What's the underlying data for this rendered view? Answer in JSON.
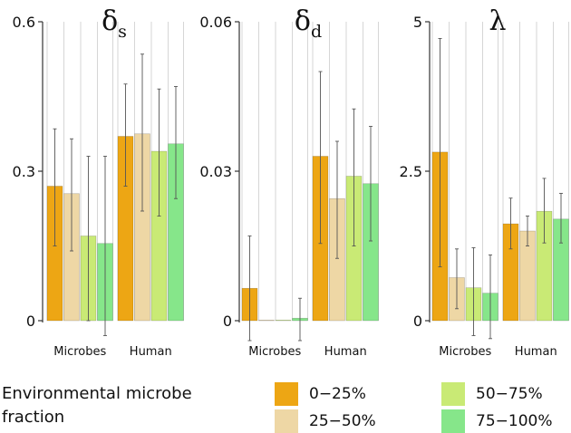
{
  "chart_data": [
    {
      "type": "bar",
      "title": "δ",
      "title_subscript": "s",
      "categories": [
        "Microbes",
        "Human"
      ],
      "ylim": [
        0,
        0.6
      ],
      "yticks": [
        0,
        0.3,
        0.6
      ],
      "ytick_labels": [
        "0",
        "0.3",
        "0.6"
      ],
      "series": [
        {
          "name": "0–25%",
          "values": [
            0.27,
            0.37
          ],
          "err_low": [
            0.15,
            0.27
          ],
          "err_high": [
            0.385,
            0.475
          ]
        },
        {
          "name": "25–50%",
          "values": [
            0.255,
            0.375
          ],
          "err_low": [
            0.14,
            0.22
          ],
          "err_high": [
            0.365,
            0.535
          ]
        },
        {
          "name": "50–75%",
          "values": [
            0.17,
            0.34
          ],
          "err_low": [
            0.0,
            0.21
          ],
          "err_high": [
            0.33,
            0.465
          ]
        },
        {
          "name": "75–100%",
          "values": [
            0.155,
            0.355
          ],
          "err_low": [
            -0.03,
            0.245
          ],
          "err_high": [
            0.33,
            0.47
          ]
        }
      ]
    },
    {
      "type": "bar",
      "title": "δ",
      "title_subscript": "d",
      "categories": [
        "Microbes",
        "Human"
      ],
      "ylim": [
        0,
        0.06
      ],
      "yticks": [
        0,
        0.03,
        0.06
      ],
      "ytick_labels": [
        "0",
        "0.03",
        "0.06"
      ],
      "series": [
        {
          "name": "0–25%",
          "values": [
            0.0065,
            0.033
          ],
          "err_low": [
            -0.004,
            0.0155
          ],
          "err_high": [
            0.017,
            0.05
          ]
        },
        {
          "name": "25–50%",
          "values": [
            0.0,
            0.0245
          ],
          "err_low": [
            0.0,
            0.0125
          ],
          "err_high": [
            0.0,
            0.036
          ]
        },
        {
          "name": "50–75%",
          "values": [
            0.0,
            0.029
          ],
          "err_low": [
            0.0,
            0.015
          ],
          "err_high": [
            0.0,
            0.0425
          ]
        },
        {
          "name": "75–100%",
          "values": [
            0.0005,
            0.0275
          ],
          "err_low": [
            -0.004,
            0.016
          ],
          "err_high": [
            0.0045,
            0.039
          ]
        }
      ]
    },
    {
      "type": "bar",
      "title": "λ",
      "title_subscript": "",
      "categories": [
        "Microbes",
        "Human"
      ],
      "ylim": [
        0,
        5
      ],
      "yticks": [
        0,
        2.5,
        5
      ],
      "ytick_labels": [
        "0",
        "2.5",
        "5"
      ],
      "series": [
        {
          "name": "0–25%",
          "values": [
            2.82,
            1.62
          ],
          "err_low": [
            0.9,
            1.2
          ],
          "err_high": [
            4.72,
            2.05
          ]
        },
        {
          "name": "25–50%",
          "values": [
            0.72,
            1.5
          ],
          "err_low": [
            0.2,
            1.25
          ],
          "err_high": [
            1.2,
            1.75
          ]
        },
        {
          "name": "50–75%",
          "values": [
            0.55,
            1.83
          ],
          "err_low": [
            -0.25,
            1.3
          ],
          "err_high": [
            1.22,
            2.38
          ]
        },
        {
          "name": "75–100%",
          "values": [
            0.46,
            1.7
          ],
          "err_low": [
            -0.3,
            1.3
          ],
          "err_high": [
            1.1,
            2.13
          ]
        }
      ]
    }
  ],
  "legend": {
    "title_line1": "Environmental microbe",
    "title_line2": "fraction",
    "items": [
      {
        "label": "0−25%",
        "color": "#eda614"
      },
      {
        "label": "25−50%",
        "color": "#eed7a5"
      },
      {
        "label": "50−75%",
        "color": "#c9ea75"
      },
      {
        "label": "75−100%",
        "color": "#86e68a"
      }
    ]
  },
  "colors": {
    "series": [
      "#eda614",
      "#eed7a5",
      "#c9ea75",
      "#86e68a"
    ],
    "axis": "#333333",
    "grid": "#d6d6d6",
    "error_bar": "#555555"
  }
}
